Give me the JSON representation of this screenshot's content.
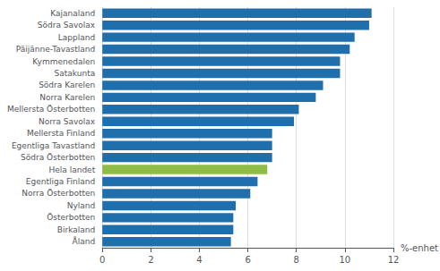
{
  "chart_data": {
    "type": "bar",
    "orientation": "horizontal",
    "xlabel": "%-enhet",
    "categories": [
      "Kajanaland",
      "Södra Savolax",
      "Lappland",
      "Päijänne-Tavastland",
      "Kymmenedalen",
      "Satakunta",
      "Södra Karelen",
      "Norra Karelen",
      "Mellersta Österbotten",
      "Norra Savolax",
      "Mellersta Finland",
      "Egentliga Tavastland",
      "Södra Österbotten",
      "Hela landet",
      "Egentliga Finland",
      "Norra Österbotten",
      "Nyland",
      "Österbotten",
      "Birkaland",
      "Åland"
    ],
    "values": [
      11.1,
      11.0,
      10.4,
      10.2,
      9.8,
      9.8,
      9.1,
      8.8,
      8.1,
      7.9,
      7.0,
      7.0,
      7.0,
      6.8,
      6.4,
      6.1,
      5.5,
      5.4,
      5.4,
      5.3
    ],
    "colors": [
      "#1F6FAD",
      "#1F6FAD",
      "#1F6FAD",
      "#1F6FAD",
      "#1F6FAD",
      "#1F6FAD",
      "#1F6FAD",
      "#1F6FAD",
      "#1F6FAD",
      "#1F6FAD",
      "#1F6FAD",
      "#1F6FAD",
      "#1F6FAD",
      "#8FBC45",
      "#1F6FAD",
      "#1F6FAD",
      "#1F6FAD",
      "#1F6FAD",
      "#1F6FAD",
      "#1F6FAD"
    ],
    "xlim": [
      0,
      12
    ],
    "xticks": [
      0,
      2,
      4,
      6,
      8,
      10,
      12
    ],
    "grid": true
  }
}
